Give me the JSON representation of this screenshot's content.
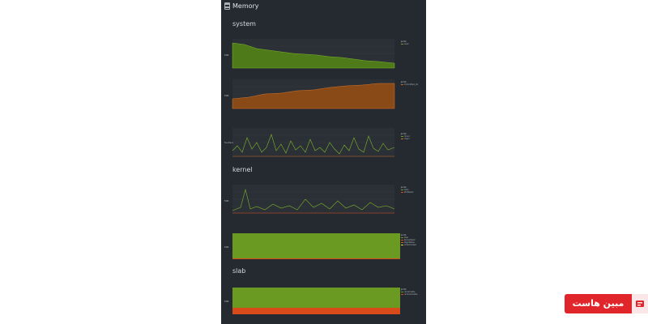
{
  "header": {
    "title": "Memory",
    "icon": "memory-icon"
  },
  "sections": {
    "system": "system",
    "kernel": "kernel",
    "slab": "slab"
  },
  "colors": {
    "green": "#6a9a22",
    "orange": "#c46a1f",
    "red": "#d84a1a",
    "panel": "#252a30",
    "brand_red": "#e1262b"
  },
  "charts": {
    "available": {
      "ylabel": "MiB",
      "date": "Jul 04",
      "legend": [
        {
          "name": "avail",
          "color": "#6a9a22"
        }
      ]
    },
    "committed": {
      "ylabel": "MiB",
      "date": "Jul 04",
      "legend": [
        {
          "name": "Committed_AS",
          "color": "#c46a1f"
        }
      ]
    },
    "pgfaults": {
      "ylabel": "faults/s",
      "date": "Jul 04",
      "legend": [
        {
          "name": "minor",
          "color": "#6a9a22"
        },
        {
          "name": "major",
          "color": "#c46a1f"
        }
      ]
    },
    "kernel_writeback": {
      "ylabel": "MiB",
      "date": "Jul 04",
      "legend": [
        {
          "name": "Dirty",
          "color": "#6a9a22"
        },
        {
          "name": "Writeback",
          "color": "#d84a1a"
        }
      ]
    },
    "kernel_mem": {
      "ylabel": "MiB",
      "date": "Jul 04",
      "legend": [
        {
          "name": "Slab",
          "color": "#6a9a22"
        },
        {
          "name": "KernelStack",
          "color": "#d84a1a"
        },
        {
          "name": "PageTables",
          "color": "#c46a1f"
        },
        {
          "name": "VmallocUsed",
          "color": "#cbd23a"
        }
      ]
    },
    "slab": {
      "ylabel": "MiB",
      "date": "Jul 04",
      "legend": [
        {
          "name": "reclaimable",
          "color": "#6a9a22"
        },
        {
          "name": "unreclaimable",
          "color": "#d84a1a"
        }
      ]
    }
  },
  "badge": {
    "text": "مبین هاست",
    "logo": "mobin-host-logo"
  }
}
